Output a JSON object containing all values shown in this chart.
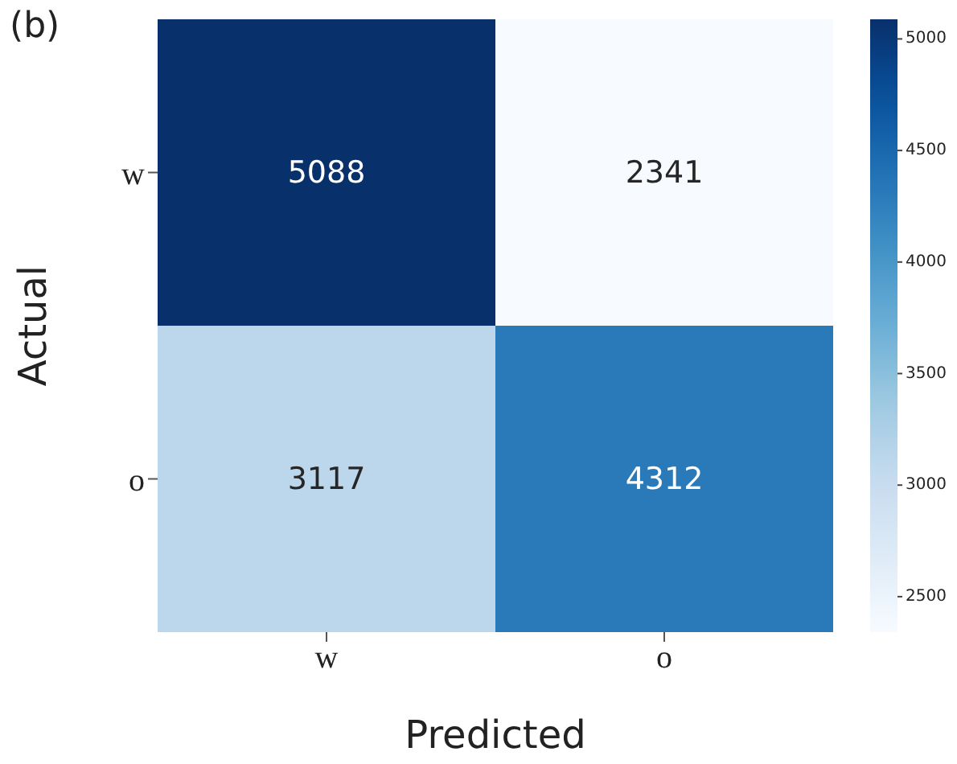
{
  "chart_data": {
    "type": "heatmap",
    "xlabel": "Predicted",
    "ylabel": "Actual",
    "annotations": [
      "(b)"
    ],
    "categories": [
      "w",
      "o"
    ],
    "y_categories": [
      "w",
      "o"
    ],
    "cells": [
      [
        5088,
        2341
      ],
      [
        3117,
        4312
      ]
    ],
    "clim": [
      2341,
      5088
    ],
    "cticks": [
      2500,
      3000,
      3500,
      4000,
      4500,
      5000
    ],
    "data_labels": true
  }
}
